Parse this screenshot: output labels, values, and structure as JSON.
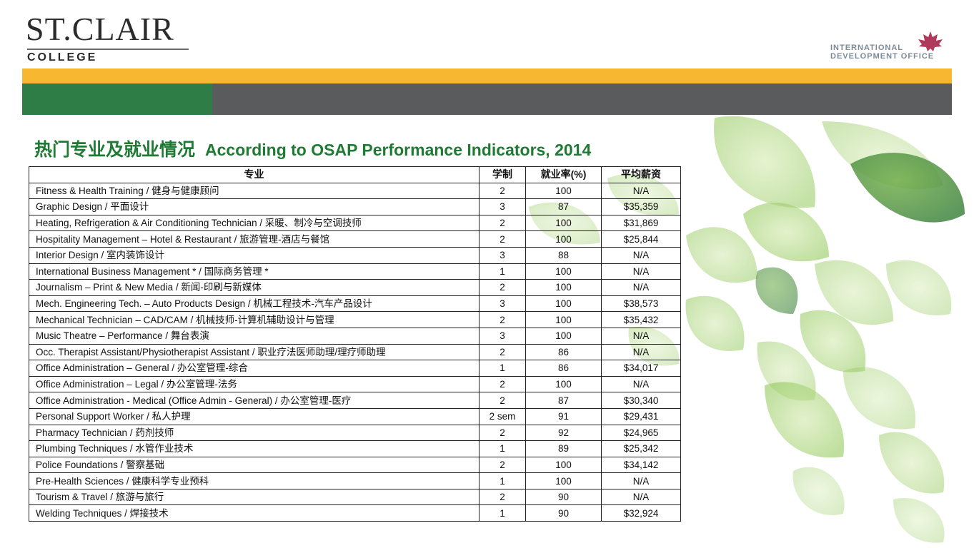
{
  "header": {
    "logo_main": "ST.CLAIR",
    "logo_sub": "COLLEGE",
    "office_line1": "INTERNATIONAL",
    "office_line2": "DEVELOPMENT OFFICE"
  },
  "heading": {
    "zh": "热门专业及就业情况",
    "en": "According to OSAP Performance Indicators, 2014"
  },
  "table": {
    "headers": [
      "专业",
      "学制",
      "就业率(%)",
      "平均薪资"
    ],
    "rows": [
      [
        "Fitness & Health Training / 健身与健康顾问",
        "2",
        "100",
        "N/A"
      ],
      [
        "Graphic Design / 平面设计",
        "3",
        "87",
        "$35,359"
      ],
      [
        "Heating, Refrigeration & Air Conditioning Technician / 采暖、制冷与空调技师",
        "2",
        "100",
        "$31,869"
      ],
      [
        "Hospitality Management – Hotel & Restaurant / 旅游管理-酒店与餐馆",
        "2",
        "100",
        "$25,844"
      ],
      [
        "Interior Design / 室内装饰设计",
        "3",
        "88",
        "N/A"
      ],
      [
        "International Business Management * / 国际商务管理 *",
        "1",
        "100",
        "N/A"
      ],
      [
        "Journalism – Print & New Media / 新闻-印刷与新媒体",
        "2",
        "100",
        "N/A"
      ],
      [
        "Mech. Engineering Tech. – Auto Products Design / 机械工程技术-汽车产品设计",
        "3",
        "100",
        "$38,573"
      ],
      [
        "Mechanical Technician – CAD/CAM / 机械技师-计算机辅助设计与管理",
        "2",
        "100",
        "$35,432"
      ],
      [
        "Music Theatre – Performance / 舞台表演",
        "3",
        "100",
        "N/A"
      ],
      [
        "Occ. Therapist Assistant/Physiotherapist Assistant / 职业疗法医师助理/理疗师助理",
        "2",
        "86",
        "N/A"
      ],
      [
        "Office Administration – General / 办公室管理-综合",
        "1",
        "86",
        "$34,017"
      ],
      [
        "Office Administration – Legal / 办公室管理-法务",
        "2",
        "100",
        "N/A"
      ],
      [
        "Office Administration - Medical (Office Admin - General) / 办公室管理-医疗",
        "2",
        "87",
        "$30,340"
      ],
      [
        "Personal Support Worker / 私人护理",
        "2 sem",
        "91",
        "$29,431"
      ],
      [
        "Pharmacy Technician / 药剂技师",
        "2",
        "92",
        "$24,965"
      ],
      [
        "Plumbing Techniques / 水管作业技术",
        "1",
        "89",
        "$25,342"
      ],
      [
        "Police Foundations / 警察基础",
        "2",
        "100",
        "$34,142"
      ],
      [
        "Pre-Health Sciences / 健康科学专业预科",
        "1",
        "100",
        "N/A"
      ],
      [
        "Tourism & Travel / 旅游与旅行",
        "2",
        "90",
        "N/A"
      ],
      [
        "Welding Techniques / 焊接技术",
        "1",
        "90",
        "$32,924"
      ]
    ]
  },
  "colors": {
    "yellow_bar": "#f7b731",
    "green_bar": "#2f7d46",
    "gray_bar": "#595b5d",
    "heading": "#1f7a33",
    "leaf": "#8cc63f"
  },
  "icons": [
    "maple-leaf-icon",
    "green-leaves-decoration"
  ]
}
